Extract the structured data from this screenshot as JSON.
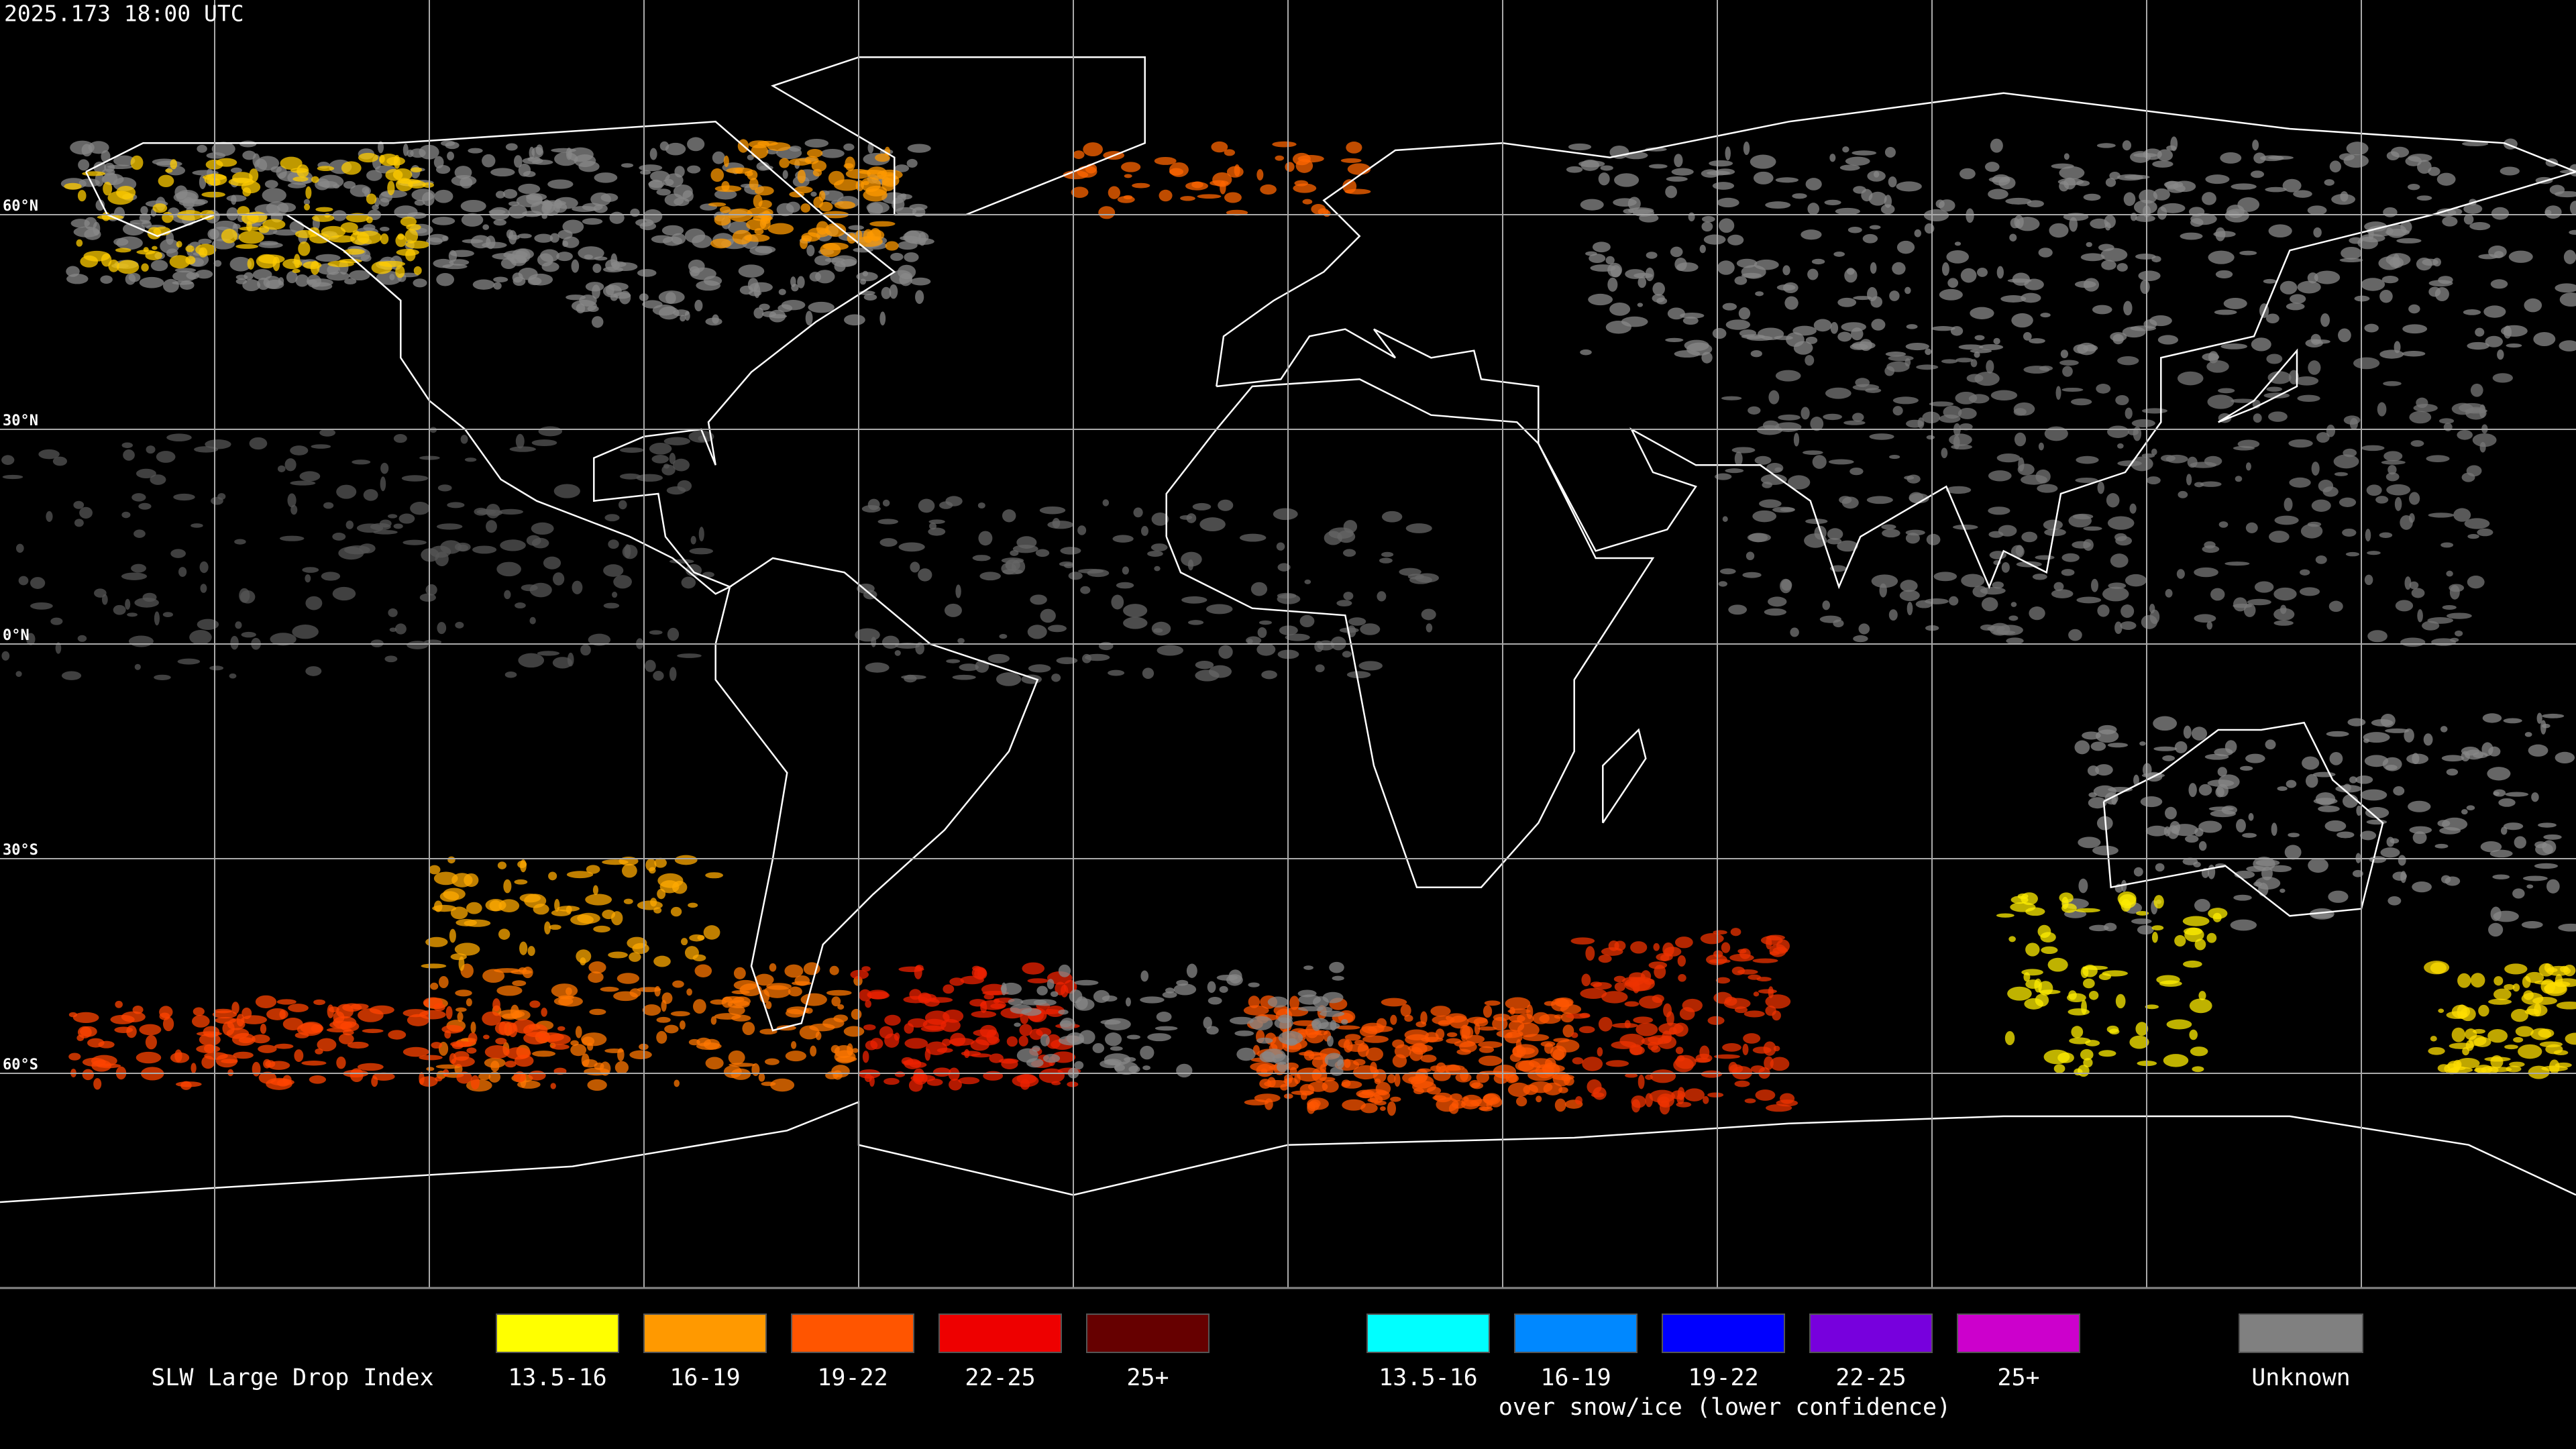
{
  "header": {
    "timestamp": "2025.173 18:00 UTC"
  },
  "map": {
    "latitude_labels": [
      "60°N",
      "30°N",
      "0°N",
      "30°S",
      "60°S"
    ]
  },
  "legend": {
    "title": "SLW Large Drop Index",
    "items": [
      {
        "label": "13.5-16",
        "color": "#ffff00"
      },
      {
        "label": "16-19",
        "color": "#ff9900"
      },
      {
        "label": "19-22",
        "color": "#ff5500"
      },
      {
        "label": "22-25",
        "color": "#ee0000"
      },
      {
        "label": "25+",
        "color": "#660000"
      }
    ],
    "snow_ice_items": [
      {
        "label": "13.5-16",
        "color": "#00ffff"
      },
      {
        "label": "16-19",
        "color": "#0088ff"
      },
      {
        "label": "19-22",
        "color": "#0000ff"
      },
      {
        "label": "22-25",
        "color": "#7700dd"
      },
      {
        "label": "25+",
        "color": "#cc00cc"
      }
    ],
    "snow_ice_caption": "over snow/ice (lower confidence)",
    "unknown": {
      "label": "Unknown",
      "color": "#808080"
    }
  }
}
